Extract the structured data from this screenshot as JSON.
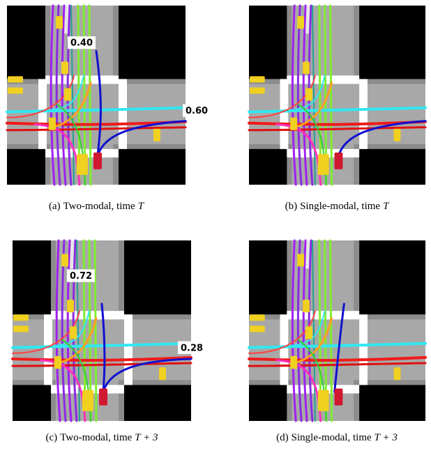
{
  "panels": [
    {
      "tag": "(a)",
      "caption": "Two-modal, time",
      "math": "T",
      "labels": [
        "0.40",
        "0.60"
      ]
    },
    {
      "tag": "(b)",
      "caption": "Single-modal, time",
      "math": "T"
    },
    {
      "tag": "(c)",
      "caption": "Two-modal, time",
      "math": "T + 3",
      "labels": [
        "0.72",
        "0.28"
      ]
    },
    {
      "tag": "(d)",
      "caption": "Single-modal, time",
      "math": "T + 3"
    }
  ]
}
